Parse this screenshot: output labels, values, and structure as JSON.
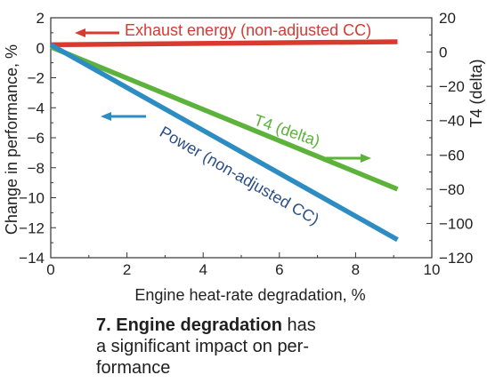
{
  "chart_data": {
    "type": "line",
    "x": [
      0,
      9.1
    ],
    "xlabel": "Engine heat-rate degradation, %",
    "xlim": [
      0,
      10
    ],
    "xticks": [
      0,
      2,
      4,
      6,
      8,
      10
    ],
    "ylabel": "Change in performance, %",
    "ylim": [
      -14,
      2
    ],
    "yticks": [
      2,
      0,
      -2,
      -4,
      -6,
      -8,
      -10,
      -12,
      -14
    ],
    "y2label": "T4 (delta)",
    "y2lim": [
      -120,
      20
    ],
    "y2ticks": [
      20,
      0,
      -20,
      -40,
      -60,
      -80,
      -100,
      -120
    ],
    "grid": false,
    "series": [
      {
        "name": "Exhaust energy (non-adjusted CC)",
        "axis": "left",
        "x": [
          0,
          9.1
        ],
        "values": [
          0.2,
          0.4
        ],
        "color": "#d93a30",
        "arrow": "left"
      },
      {
        "name": "T4 (delta)",
        "axis": "right",
        "x": [
          0,
          9.1
        ],
        "values": [
          3,
          -80
        ],
        "color": "#5cb23a",
        "arrow": "right"
      },
      {
        "name": "Power (non-adjusted CC)",
        "axis": "left",
        "x": [
          0,
          9.1
        ],
        "values": [
          0.2,
          -12.8
        ],
        "color": "#2d8cc2",
        "arrow": "left"
      }
    ]
  },
  "caption": {
    "number": "7.",
    "bold": "Engine degradation",
    "rest_line1": " has",
    "line2": "a significant impact on per-",
    "line3": "formance"
  }
}
